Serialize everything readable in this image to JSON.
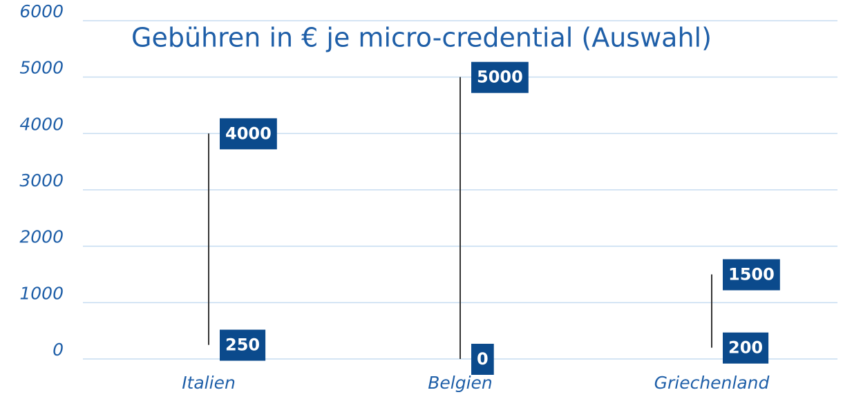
{
  "chart_data": {
    "type": "range",
    "title": "Gebühren in € je micro-credential (Auswahl)",
    "categories": [
      "Italien",
      "Belgien",
      "Griechenland"
    ],
    "low": [
      250,
      0,
      200
    ],
    "high": [
      4000,
      5000,
      1500
    ],
    "color": "#333333",
    "label_color": "#0b4a8c",
    "ylim": [
      0,
      6000
    ],
    "yticks": [
      0,
      1000,
      2000,
      3000,
      4000,
      5000,
      6000
    ],
    "grid": true
  }
}
